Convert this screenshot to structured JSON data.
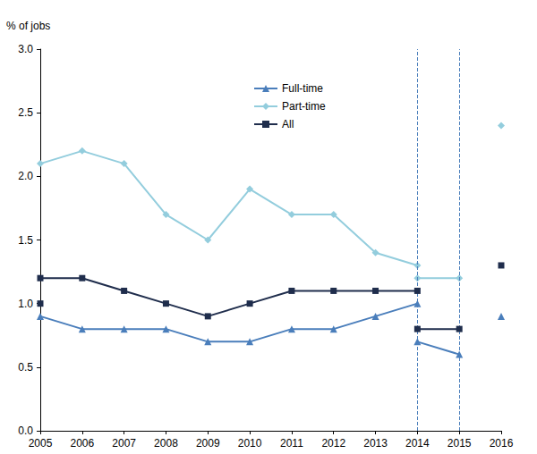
{
  "chart_data": {
    "type": "line",
    "ylabel": "% of jobs",
    "xlim": [
      2005,
      2016
    ],
    "xticks": [
      2005,
      2006,
      2007,
      2008,
      2009,
      2010,
      2011,
      2012,
      2013,
      2014,
      2015,
      2016
    ],
    "ylim": [
      0,
      3
    ],
    "yticks": [
      {
        "value": 0,
        "label": "0.0"
      },
      0.5,
      {
        "value": 1,
        "label": "1.0"
      },
      1.5,
      {
        "value": 2,
        "label": "2.0"
      },
      2.5,
      {
        "value": 3,
        "label": "3.0"
      }
    ],
    "grid": false,
    "legend": "top",
    "vlines": [
      2014,
      2015
    ],
    "series": [
      {
        "name": "Full-time",
        "color": "#4a7ebb",
        "marker": "triangle",
        "line_style": "solid",
        "x": [
          2005,
          2006,
          2007,
          2008,
          2009,
          2010,
          2011,
          2012,
          2013,
          2014,
          2014,
          2014,
          2015,
          2015,
          2016
        ],
        "values": [
          0.9,
          0.8,
          0.8,
          0.8,
          0.7,
          0.7,
          0.8,
          0.8,
          0.9,
          1.0,
          null,
          0.7,
          0.6,
          null,
          0.9
        ]
      },
      {
        "name": "Part-time",
        "color": "#93cddd",
        "marker": "diamond",
        "line_style": "solid",
        "x": [
          2005,
          2006,
          2007,
          2008,
          2009,
          2010,
          2011,
          2012,
          2013,
          2014,
          2014,
          2014,
          2015,
          2015,
          2016
        ],
        "values": [
          2.1,
          2.2,
          2.1,
          1.7,
          1.5,
          1.9,
          1.7,
          1.7,
          1.4,
          1.3,
          null,
          1.2,
          1.2,
          null,
          2.4
        ]
      },
      {
        "name": "All",
        "color": "#1f2d4c",
        "marker": "square",
        "line_style": "solid",
        "x": [
          2005,
          2005,
          2005,
          2006,
          2007,
          2008,
          2009,
          2010,
          2011,
          2012,
          2013,
          2014,
          2014,
          2014,
          2015,
          2015,
          2016
        ],
        "values": [
          1.0,
          null,
          1.2,
          1.2,
          1.1,
          1.0,
          0.9,
          1.0,
          1.1,
          1.1,
          1.1,
          1.1,
          null,
          0.8,
          0.8,
          null,
          1.3
        ]
      }
    ]
  }
}
